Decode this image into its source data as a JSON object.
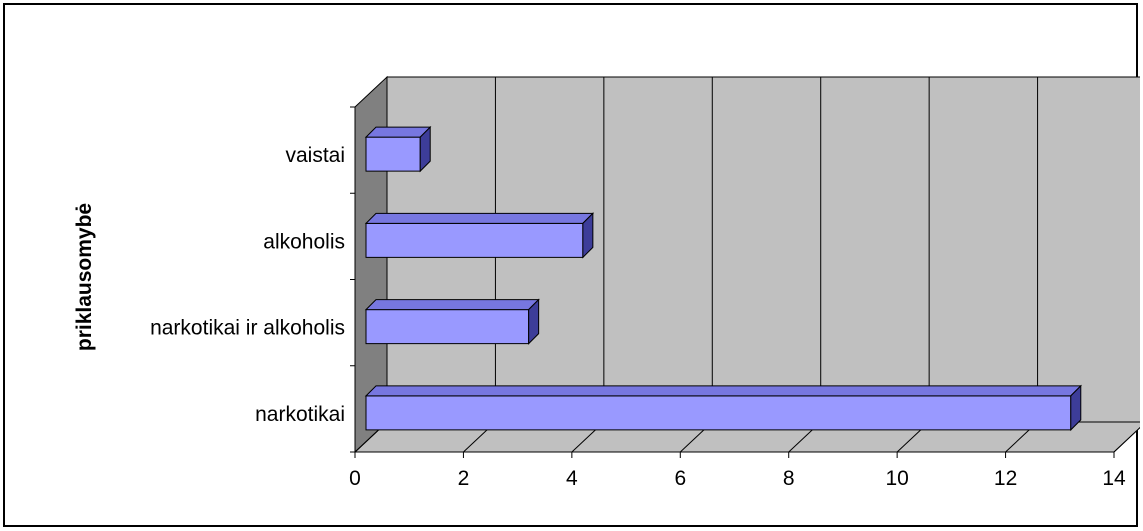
{
  "chart_data": {
    "type": "bar",
    "orientation": "horizontal",
    "three_d": true,
    "categories": [
      "narkotikai",
      "narkotikai ir alkoholis",
      "alkoholis",
      "vaistai"
    ],
    "values": [
      13,
      3,
      4,
      1
    ],
    "title": "",
    "xlabel": "",
    "ylabel": "priklausomybė",
    "xlim": [
      0,
      14
    ],
    "x_ticks": [
      0,
      2,
      4,
      6,
      8,
      10,
      12,
      14
    ],
    "grid": "vertical",
    "legend": "none"
  },
  "colors": {
    "bar_front": "#9999ff",
    "bar_top": "#7777e0",
    "bar_side": "#3d3d99",
    "wall": "#c0c0c0",
    "side_wall": "#808080",
    "gridline": "#000000"
  }
}
